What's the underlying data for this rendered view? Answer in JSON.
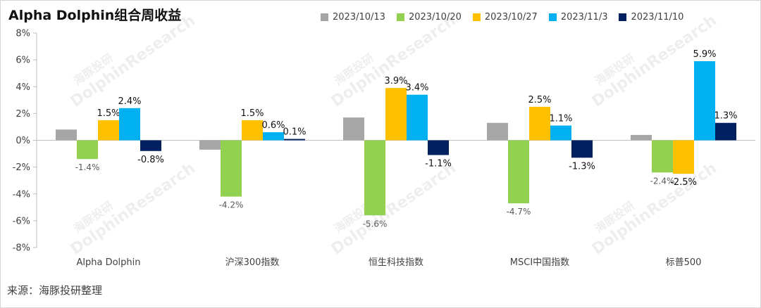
{
  "title": "Alpha Dolphin组合周收益",
  "source": "来源：海豚投研整理",
  "watermark": {
    "brand_cn": "海豚投研",
    "brand_en": "DolphinResearch"
  },
  "chart_data": {
    "type": "bar",
    "title": "Alpha Dolphin组合周收益",
    "xlabel": "",
    "ylabel": "",
    "ylim": [
      -8,
      8
    ],
    "yticks": [
      -8,
      -6,
      -4,
      -2,
      0,
      2,
      4,
      6,
      8
    ],
    "ytick_labels": [
      "-8%",
      "-6%",
      "-4%",
      "-2%",
      "0%",
      "2%",
      "4%",
      "6%",
      "8%"
    ],
    "grid": false,
    "legend_position": "top",
    "categories": [
      "Alpha Dolphin",
      "沪深300指数",
      "恒生科技指数",
      "MSCI中国指数",
      "标普500"
    ],
    "series": [
      {
        "name": "2023/10/13",
        "color": "#a6a6a6",
        "values": [
          0.8,
          -0.7,
          1.7,
          1.3,
          0.4
        ],
        "labels": [
          "",
          "",
          "",
          "",
          ""
        ]
      },
      {
        "name": "2023/10/20",
        "color": "#92d050",
        "values": [
          -1.4,
          -4.2,
          -5.6,
          -4.7,
          -2.4
        ],
        "labels": [
          "-1.4%",
          "-4.2%",
          "-5.6%",
          "-4.7%",
          "-2.4%"
        ]
      },
      {
        "name": "2023/10/27",
        "color": "#ffc000",
        "values": [
          1.5,
          1.5,
          3.9,
          2.5,
          -2.5
        ],
        "labels": [
          "1.5%",
          "1.5%",
          "3.9%",
          "2.5%",
          "-2.5%"
        ]
      },
      {
        "name": "2023/11/3",
        "color": "#00b0f0",
        "values": [
          2.4,
          0.6,
          3.4,
          1.1,
          5.9
        ],
        "labels": [
          "2.4%",
          "0.6%",
          "3.4%",
          "1.1%",
          "5.9%"
        ]
      },
      {
        "name": "2023/11/10",
        "color": "#002060",
        "values": [
          -0.8,
          0.1,
          -1.1,
          -1.3,
          1.3
        ],
        "labels": [
          "-0.8%",
          "0.1%",
          "-1.1%",
          "-1.3%",
          "1.3%"
        ]
      }
    ]
  }
}
